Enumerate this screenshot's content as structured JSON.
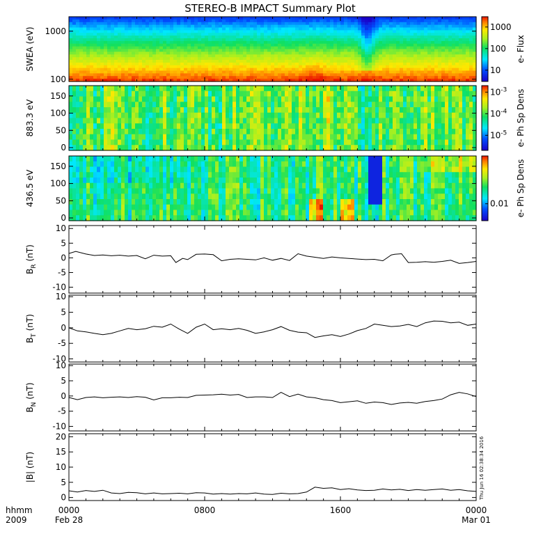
{
  "title": "STEREO-B IMPACT Summary Plot",
  "footer": {
    "row1_left": "hhmm",
    "row2_left": "2009",
    "stamp": "Thu Jun 16 02:38:34 2016"
  },
  "x_axis": {
    "range_hours": [
      0,
      24
    ],
    "ticks": [
      {
        "hour": 0,
        "line1": "0000",
        "line2": "Feb 28"
      },
      {
        "hour": 8,
        "line1": "0800",
        "line2": ""
      },
      {
        "hour": 16,
        "line1": "1600",
        "line2": ""
      },
      {
        "hour": 24,
        "line1": "0000",
        "line2": "Mar 01"
      }
    ]
  },
  "colors": {
    "line": "#000000",
    "frame": "#000000"
  },
  "chart_data": [
    {
      "id": "swea",
      "type": "heatmap",
      "ylabel": "SWEA (eV)",
      "y_scale": "log",
      "ylim": [
        90,
        2000
      ],
      "y_ticks": [
        {
          "v": 100,
          "label": "100"
        },
        {
          "v": 1000,
          "label": "1000"
        }
      ],
      "colorbar": {
        "label": "e- Flux",
        "scale": "log",
        "range": [
          3,
          3000
        ],
        "ticks": [
          {
            "v": 10,
            "label": "10"
          },
          {
            "v": 100,
            "label": "100"
          },
          {
            "v": 1000,
            "label": "1000"
          }
        ]
      },
      "features": [
        {
          "hour": 17.6,
          "width": 0.8,
          "effect": "energy dip"
        },
        {
          "hour": 14.5,
          "width": 0.9,
          "effect": "enhanced flux"
        }
      ]
    },
    {
      "id": "pad883",
      "type": "heatmap",
      "ylabel": "883.3 eV",
      "ylim": [
        -8,
        180
      ],
      "y_ticks": [
        {
          "v": 0,
          "label": "0"
        },
        {
          "v": 50,
          "label": "50"
        },
        {
          "v": 100,
          "label": "100"
        },
        {
          "v": 150,
          "label": "150"
        }
      ],
      "colorbar": {
        "label": "e- Ph Sp Dens",
        "scale": "log",
        "range": [
          2e-06,
          0.002
        ],
        "ticks": [
          {
            "v": 1e-05,
            "base": "10",
            "exp": "-5"
          },
          {
            "v": 0.0001,
            "base": "10",
            "exp": "-4"
          },
          {
            "v": 0.001,
            "base": "10",
            "exp": "-3"
          }
        ]
      }
    },
    {
      "id": "pad436",
      "type": "heatmap",
      "ylabel": "436.5 eV",
      "ylim": [
        -8,
        180
      ],
      "y_ticks": [
        {
          "v": 0,
          "label": "0"
        },
        {
          "v": 50,
          "label": "50"
        },
        {
          "v": 100,
          "label": "100"
        },
        {
          "v": 150,
          "label": "150"
        }
      ],
      "colorbar": {
        "label": "e- Ph Sp Dens",
        "scale": "log",
        "range": [
          0.003,
          0.3
        ],
        "ticks": [
          {
            "v": 0.01,
            "label": "0.01"
          }
        ]
      }
    },
    {
      "id": "br",
      "type": "line",
      "ylabel_main": "B",
      "ylabel_sub": "R",
      "ylabel_unit": " (nT)",
      "ylim": [
        -12,
        11
      ],
      "y_ticks": [
        {
          "v": -10,
          "label": "-10"
        },
        {
          "v": -5,
          "label": "-5"
        },
        {
          "v": 0,
          "label": "0"
        },
        {
          "v": 5,
          "label": "5"
        },
        {
          "v": 10,
          "label": "10"
        }
      ],
      "x": [
        0,
        0.4,
        1,
        1.5,
        2,
        2.5,
        3,
        3.5,
        4,
        4.5,
        5,
        5.5,
        6,
        6.3,
        6.7,
        7,
        7.5,
        8,
        8.5,
        9,
        9.5,
        10,
        10.5,
        11,
        11.5,
        12,
        12.5,
        13,
        13.5,
        14,
        14.5,
        15,
        15.5,
        16,
        16.5,
        17,
        17.5,
        18,
        18.5,
        19,
        19.2,
        19.6,
        20,
        20.5,
        21,
        21.5,
        22,
        22.5,
        23,
        23.5,
        24
      ],
      "y": [
        1.5,
        2.2,
        1.3,
        0.8,
        1.0,
        0.7,
        0.9,
        0.6,
        0.8,
        -0.3,
        0.9,
        0.6,
        0.7,
        -1.6,
        -0.2,
        -0.6,
        1.2,
        1.3,
        1.1,
        -1.0,
        -0.5,
        -0.3,
        -0.5,
        -0.7,
        0.0,
        -0.8,
        -0.2,
        -0.9,
        1.4,
        0.6,
        0.2,
        -0.2,
        0.3,
        0.0,
        -0.2,
        -0.4,
        -0.6,
        -0.5,
        -1.0,
        1.0,
        1.2,
        1.4,
        -1.6,
        -1.5,
        -1.3,
        -1.5,
        -1.2,
        -0.8,
        -1.9,
        -1.6,
        -1.2
      ]
    },
    {
      "id": "bt",
      "type": "line",
      "ylabel_main": "B",
      "ylabel_sub": "T",
      "ylabel_unit": " (nT)",
      "ylim": [
        -11,
        10.5
      ],
      "y_ticks": [
        {
          "v": -10,
          "label": "-10"
        },
        {
          "v": -5,
          "label": "-5"
        },
        {
          "v": 0,
          "label": "0"
        },
        {
          "v": 5,
          "label": "5"
        },
        {
          "v": 10,
          "label": "10"
        }
      ],
      "x": [
        0,
        0.5,
        1,
        1.5,
        2,
        2.5,
        3,
        3.5,
        4,
        4.5,
        5,
        5.5,
        6,
        6.5,
        7,
        7.5,
        8,
        8.5,
        9,
        9.5,
        10,
        10.5,
        11,
        11.5,
        12,
        12.5,
        13,
        13.5,
        14,
        14.5,
        15,
        15.5,
        16,
        16.5,
        17,
        17.5,
        18,
        18.5,
        19,
        19.5,
        20,
        20.5,
        21,
        21.5,
        22,
        22.5,
        23,
        23.5,
        24
      ],
      "y": [
        0.0,
        -1.0,
        -1.3,
        -1.8,
        -2.2,
        -1.8,
        -1.0,
        -0.2,
        -0.6,
        -0.3,
        0.5,
        0.2,
        1.2,
        -0.4,
        -1.8,
        0.2,
        1.2,
        -0.6,
        -0.3,
        -0.6,
        -0.2,
        -0.8,
        -1.8,
        -1.3,
        -0.6,
        0.4,
        -0.8,
        -1.4,
        -1.6,
        -3.1,
        -2.6,
        -2.2,
        -2.8,
        -2.0,
        -0.9,
        -0.2,
        1.2,
        0.8,
        0.4,
        0.6,
        1.1,
        0.4,
        1.6,
        2.2,
        2.1,
        1.6,
        1.8,
        0.8,
        1.2
      ]
    },
    {
      "id": "bn",
      "type": "line",
      "ylabel_main": "B",
      "ylabel_sub": "N",
      "ylabel_unit": " (nT)",
      "ylim": [
        -11.5,
        10.5
      ],
      "y_ticks": [
        {
          "v": -10,
          "label": "-10"
        },
        {
          "v": -5,
          "label": "-5"
        },
        {
          "v": 0,
          "label": "0"
        },
        {
          "v": 5,
          "label": "5"
        },
        {
          "v": 10,
          "label": "10"
        }
      ],
      "x": [
        0,
        0.5,
        1,
        1.5,
        2,
        2.5,
        3,
        3.5,
        4,
        4.5,
        5,
        5.5,
        6,
        6.5,
        7,
        7.5,
        8,
        8.5,
        9,
        9.5,
        10,
        10.5,
        11,
        11.5,
        12,
        12.5,
        13,
        13.5,
        14,
        14.5,
        15,
        15.5,
        16,
        16.5,
        17,
        17.5,
        18,
        18.5,
        19,
        19.5,
        20,
        20.5,
        21,
        21.5,
        22,
        22.5,
        23,
        23.5,
        24
      ],
      "y": [
        -0.5,
        -1.2,
        -0.5,
        -0.3,
        -0.6,
        -0.4,
        -0.3,
        -0.5,
        -0.2,
        -0.4,
        -1.3,
        -0.6,
        -0.6,
        -0.4,
        -0.5,
        0.2,
        0.3,
        0.4,
        0.6,
        0.3,
        0.5,
        -0.5,
        -0.3,
        -0.3,
        -0.5,
        1.2,
        -0.2,
        0.6,
        -0.3,
        -0.6,
        -1.2,
        -1.5,
        -2.2,
        -1.9,
        -1.6,
        -2.4,
        -2.0,
        -2.2,
        -2.8,
        -2.3,
        -2.1,
        -2.4,
        -1.8,
        -1.5,
        -1.0,
        0.4,
        1.2,
        0.7,
        -0.2
      ]
    },
    {
      "id": "bmag",
      "type": "line",
      "ylabel": "|B| (nT)",
      "ylim": [
        -1,
        21
      ],
      "y_ticks": [
        {
          "v": 0,
          "label": "0"
        },
        {
          "v": 5,
          "label": "5"
        },
        {
          "v": 10,
          "label": "10"
        },
        {
          "v": 15,
          "label": "15"
        },
        {
          "v": 20,
          "label": "20"
        }
      ],
      "x": [
        0,
        0.5,
        1,
        1.5,
        2,
        2.5,
        3,
        3.5,
        4,
        4.5,
        5,
        5.5,
        6,
        6.5,
        7,
        7.5,
        8,
        8.5,
        9,
        9.5,
        10,
        10.5,
        11,
        11.5,
        12,
        12.5,
        13,
        13.5,
        14,
        14.5,
        15,
        15.5,
        16,
        16.5,
        17,
        17.5,
        18,
        18.5,
        19,
        19.5,
        20,
        20.5,
        21,
        21.5,
        22,
        22.5,
        23,
        23.5,
        24
      ],
      "y": [
        2.2,
        1.8,
        2.3,
        2.0,
        2.4,
        1.5,
        1.3,
        1.7,
        1.6,
        1.2,
        1.5,
        1.2,
        1.3,
        1.4,
        1.2,
        1.6,
        1.5,
        1.1,
        1.3,
        1.1,
        1.3,
        1.2,
        1.5,
        1.1,
        1.0,
        1.4,
        1.2,
        1.3,
        1.8,
        3.4,
        3.0,
        3.2,
        2.6,
        2.9,
        2.5,
        2.3,
        2.4,
        2.8,
        2.5,
        2.7,
        2.3,
        2.6,
        2.4,
        2.6,
        2.8,
        2.4,
        2.6,
        2.2,
        2.0
      ]
    }
  ]
}
